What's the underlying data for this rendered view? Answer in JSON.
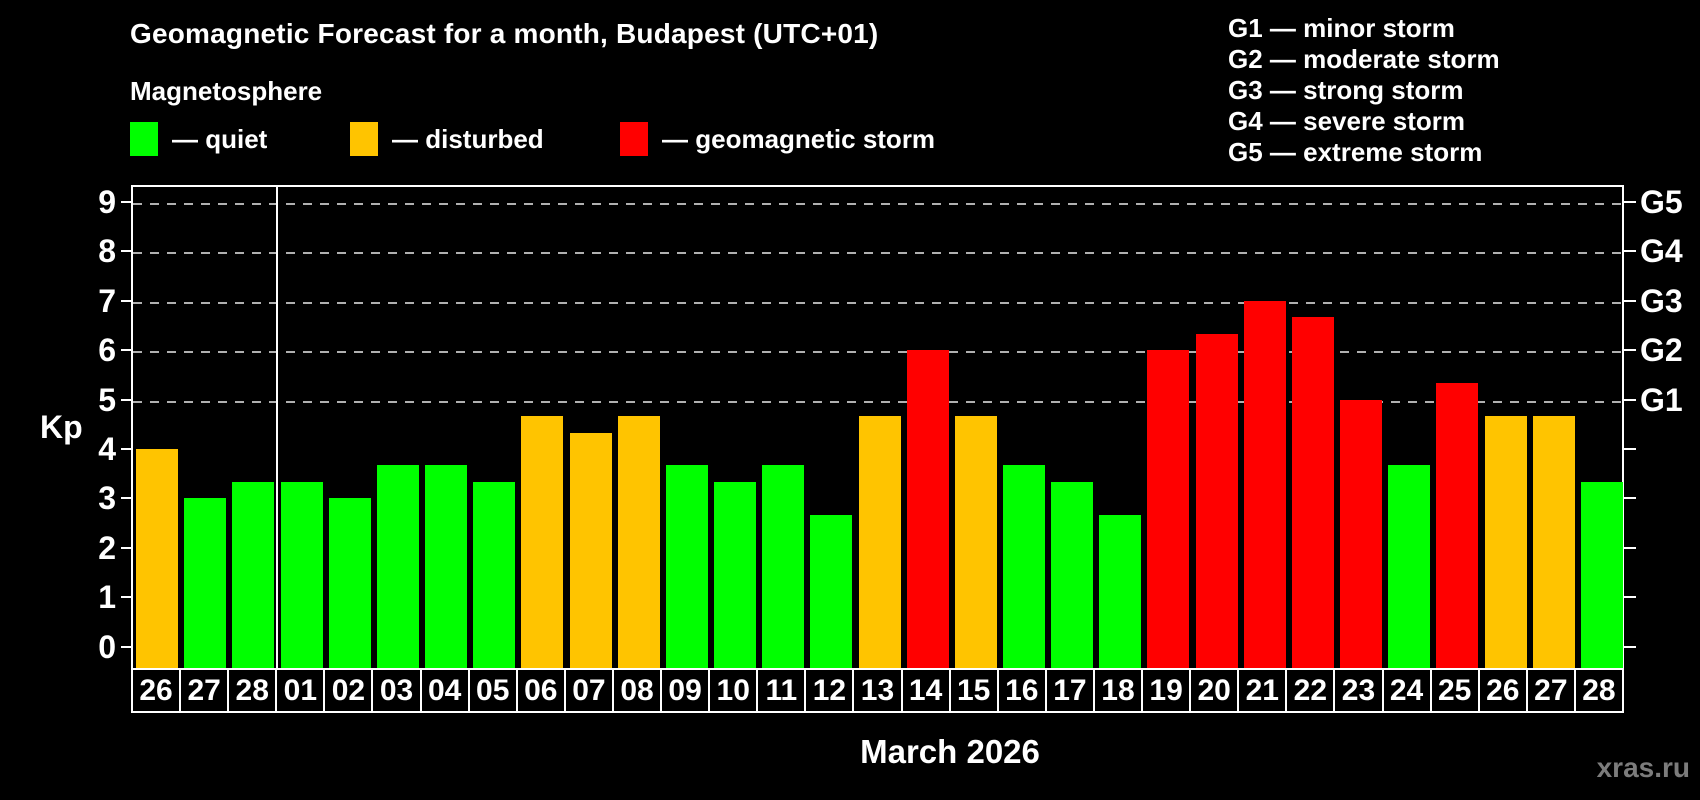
{
  "header": {
    "title": "Geomagnetic Forecast for a month, Budapest (UTC+01)",
    "subtitle": "Magnetosphere"
  },
  "legend": {
    "items": [
      {
        "key": "quiet",
        "label": "— quiet",
        "color": "#00FF00"
      },
      {
        "key": "disturbed",
        "label": "— disturbed",
        "color": "#FFC400"
      },
      {
        "key": "storm",
        "label": "— geomagnetic storm",
        "color": "#FF0000"
      }
    ]
  },
  "g_scale_legend": {
    "lines": [
      "G1 — minor storm",
      "G2 — moderate storm",
      "G3 — strong storm",
      "G4 — severe storm",
      "G5 — extreme storm"
    ]
  },
  "axes": {
    "y_label": "Kp",
    "y_ticks": [
      0,
      1,
      2,
      3,
      4,
      5,
      6,
      7,
      8,
      9
    ],
    "right_labels": [
      {
        "label": "G1",
        "kp": 5
      },
      {
        "label": "G2",
        "kp": 6
      },
      {
        "label": "G3",
        "kp": 7
      },
      {
        "label": "G4",
        "kp": 8
      },
      {
        "label": "G5",
        "kp": 9
      }
    ],
    "x_label": "March 2026"
  },
  "watermark": "xras.ru",
  "chart_data": {
    "type": "bar",
    "title": "Geomagnetic Forecast for a month, Budapest (UTC+01)",
    "subtitle": "Magnetosphere",
    "ylabel": "Kp",
    "xlabel": "March 2026",
    "ylim": [
      0,
      9
    ],
    "grid_kp_levels": [
      5,
      6,
      7,
      8,
      9
    ],
    "month_separator_after_index": 2,
    "categories": [
      "26",
      "27",
      "28",
      "01",
      "02",
      "03",
      "04",
      "05",
      "06",
      "07",
      "08",
      "09",
      "10",
      "11",
      "12",
      "13",
      "14",
      "15",
      "16",
      "17",
      "18",
      "19",
      "20",
      "21",
      "22",
      "23",
      "24",
      "25",
      "26",
      "27",
      "28"
    ],
    "values": [
      4.0,
      3.0,
      3.33,
      3.33,
      3.0,
      3.67,
      3.67,
      3.33,
      4.67,
      4.33,
      4.67,
      3.67,
      3.33,
      3.67,
      2.67,
      4.67,
      6.0,
      4.67,
      3.67,
      3.33,
      2.67,
      6.0,
      6.33,
      7.0,
      6.67,
      5.0,
      3.67,
      5.33,
      4.67,
      4.67,
      3.33
    ],
    "statuses": [
      "disturbed",
      "quiet",
      "quiet",
      "quiet",
      "quiet",
      "quiet",
      "quiet",
      "quiet",
      "disturbed",
      "disturbed",
      "disturbed",
      "quiet",
      "quiet",
      "quiet",
      "quiet",
      "disturbed",
      "storm",
      "disturbed",
      "quiet",
      "quiet",
      "quiet",
      "storm",
      "storm",
      "storm",
      "storm",
      "storm",
      "quiet",
      "storm",
      "disturbed",
      "disturbed",
      "quiet"
    ],
    "status_colors": {
      "quiet": "#00FF00",
      "disturbed": "#FFC400",
      "storm": "#FF0000"
    }
  }
}
